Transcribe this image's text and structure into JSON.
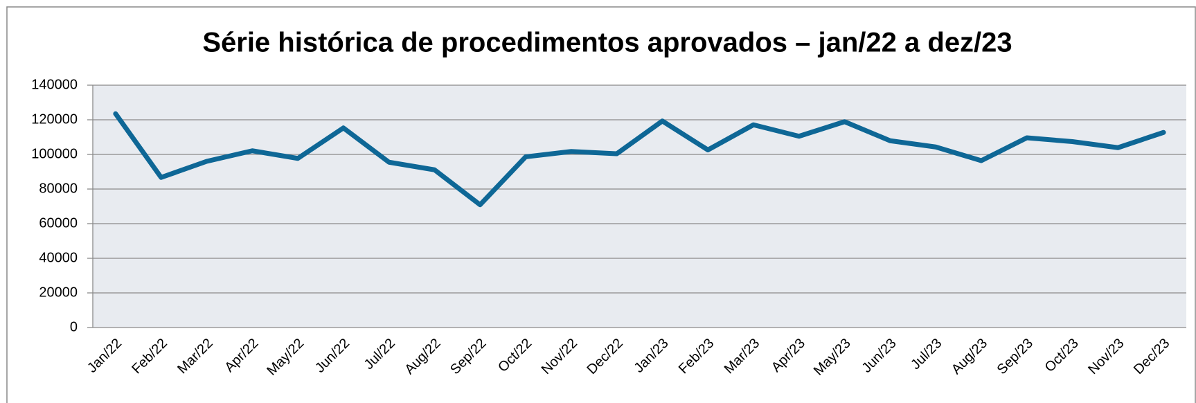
{
  "chart_data": {
    "type": "line",
    "title": "Série histórica de procedimentos aprovados – jan/22 a dez/23",
    "categories": [
      "Jan/22",
      "Feb/22",
      "Mar/22",
      "Apr/22",
      "May/22",
      "Jun/22",
      "Jul/22",
      "Aug/22",
      "Sep/22",
      "Oct/22",
      "Nov/22",
      "Dec/22",
      "Jan/23",
      "Feb/23",
      "Mar/23",
      "Apr/23",
      "May/23",
      "Jun/23",
      "Jul/23",
      "Aug/23",
      "Sep/23",
      "Oct/23",
      "Nov/23",
      "Dec/23"
    ],
    "series": [
      {
        "name": "Procedimentos aprovados",
        "color": "#0e6796",
        "values": [
          123500,
          86700,
          96000,
          102100,
          97700,
          115300,
          95500,
          91100,
          70900,
          98600,
          101700,
          100400,
          119300,
          102600,
          117100,
          110500,
          118900,
          107900,
          104300,
          96400,
          109600,
          107400,
          103900,
          112700
        ]
      }
    ],
    "ylim": [
      0,
      140000
    ],
    "yticks": [
      0,
      20000,
      40000,
      60000,
      80000,
      100000,
      120000,
      140000
    ],
    "grid": true
  }
}
